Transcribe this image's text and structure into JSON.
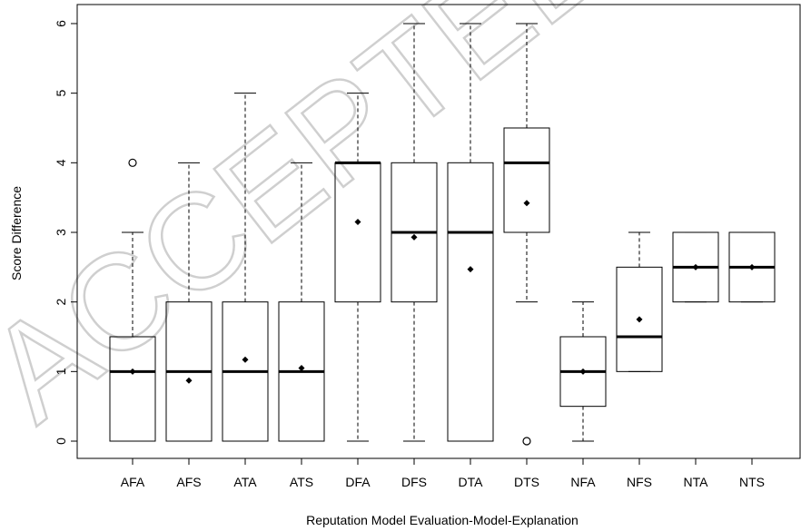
{
  "chart_data": {
    "type": "boxplot",
    "title": "",
    "xlabel": "Reputation Model Evaluation-Model-Explanation",
    "ylabel": "Score Difference",
    "ylim": [
      0,
      6
    ],
    "y_ticks": [
      0,
      1,
      2,
      3,
      4,
      5,
      6
    ],
    "categories": [
      "AFA",
      "AFS",
      "ATA",
      "ATS",
      "DFA",
      "DFS",
      "DTA",
      "DTS",
      "NFA",
      "NFS",
      "NTA",
      "NTS"
    ],
    "boxes": [
      {
        "label": "AFA",
        "whisker_low": 0,
        "q1": 0,
        "median": 1,
        "q3": 1.5,
        "whisker_high": 3,
        "mean": 1.0,
        "outliers": [
          4
        ]
      },
      {
        "label": "AFS",
        "whisker_low": 0,
        "q1": 0,
        "median": 1,
        "q3": 2,
        "whisker_high": 4,
        "mean": 0.87,
        "outliers": []
      },
      {
        "label": "ATA",
        "whisker_low": 0,
        "q1": 0,
        "median": 1,
        "q3": 2,
        "whisker_high": 5,
        "mean": 1.17,
        "outliers": []
      },
      {
        "label": "ATS",
        "whisker_low": 0,
        "q1": 0,
        "median": 1,
        "q3": 2,
        "whisker_high": 4,
        "mean": 1.05,
        "outliers": []
      },
      {
        "label": "DFA",
        "whisker_low": 0,
        "q1": 2,
        "median": 4,
        "q3": 4,
        "whisker_high": 5,
        "mean": 3.15,
        "outliers": []
      },
      {
        "label": "DFS",
        "whisker_low": 0,
        "q1": 2,
        "median": 3,
        "q3": 4,
        "whisker_high": 6,
        "mean": 2.93,
        "outliers": []
      },
      {
        "label": "DTA",
        "whisker_low": 0,
        "q1": 0,
        "median": 3,
        "q3": 4,
        "whisker_high": 6,
        "mean": 2.47,
        "outliers": []
      },
      {
        "label": "DTS",
        "whisker_low": 2,
        "q1": 3,
        "median": 4,
        "q3": 4.5,
        "whisker_high": 6,
        "mean": 3.42,
        "outliers": [
          0
        ]
      },
      {
        "label": "NFA",
        "whisker_low": 0,
        "q1": 0.5,
        "median": 1,
        "q3": 1.5,
        "whisker_high": 2,
        "mean": 1.0,
        "outliers": []
      },
      {
        "label": "NFS",
        "whisker_low": 1,
        "q1": 1,
        "median": 1.5,
        "q3": 2.5,
        "whisker_high": 3,
        "mean": 1.75,
        "outliers": []
      },
      {
        "label": "NTA",
        "whisker_low": 2,
        "q1": 2,
        "median": 2.5,
        "q3": 3,
        "whisker_high": 3,
        "mean": 2.5,
        "outliers": []
      },
      {
        "label": "NTS",
        "whisker_low": 2,
        "q1": 2,
        "median": 2.5,
        "q3": 3,
        "whisker_high": 3,
        "mean": 2.5,
        "outliers": []
      }
    ],
    "grid": false,
    "legend": "none"
  },
  "watermark_text": "ACCEPTED MANUSCRIPT"
}
